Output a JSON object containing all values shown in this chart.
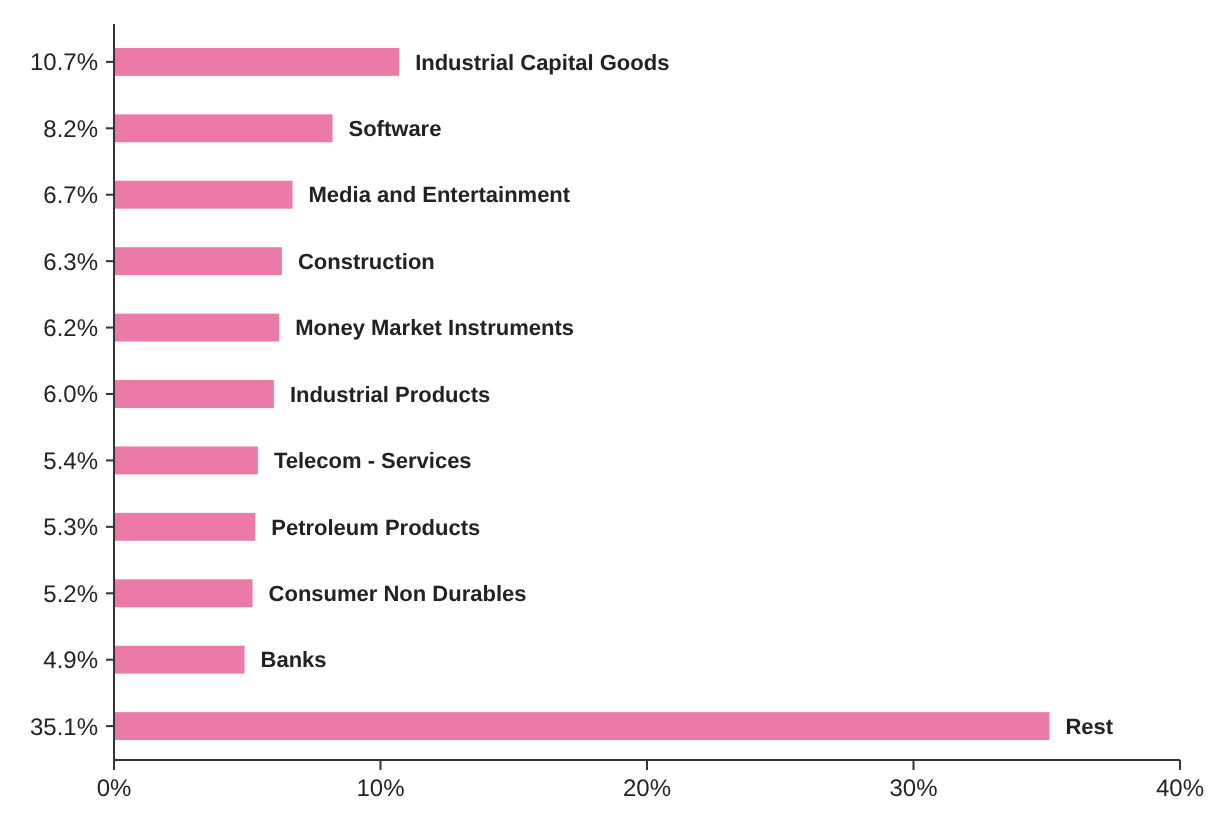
{
  "chart_data": {
    "type": "bar",
    "orientation": "horizontal",
    "categories": [
      "10.7%",
      "8.2%",
      "6.7%",
      "6.3%",
      "6.2%",
      "6.0%",
      "5.4%",
      "5.3%",
      "5.2%",
      "4.9%",
      "35.1%"
    ],
    "values": [
      10.7,
      8.2,
      6.7,
      6.3,
      6.2,
      6.0,
      5.4,
      5.3,
      5.2,
      4.9,
      35.1
    ],
    "value_labels": [
      "Industrial Capital Goods",
      "Software",
      "Media and Entertainment",
      "Construction",
      "Money Market Instruments",
      "Industrial Products",
      "Telecom - Services",
      "Petroleum Products",
      "Consumer Non Durables",
      "Banks",
      "Rest"
    ],
    "color": "#ec7aa9",
    "xlim": [
      0,
      40
    ],
    "xticks": [
      {
        "value": 0,
        "label": "0%"
      },
      {
        "value": 10,
        "label": "10%"
      },
      {
        "value": 20,
        "label": "20%"
      },
      {
        "value": 30,
        "label": "30%"
      },
      {
        "value": 40,
        "label": "40%"
      }
    ],
    "grid": false
  }
}
